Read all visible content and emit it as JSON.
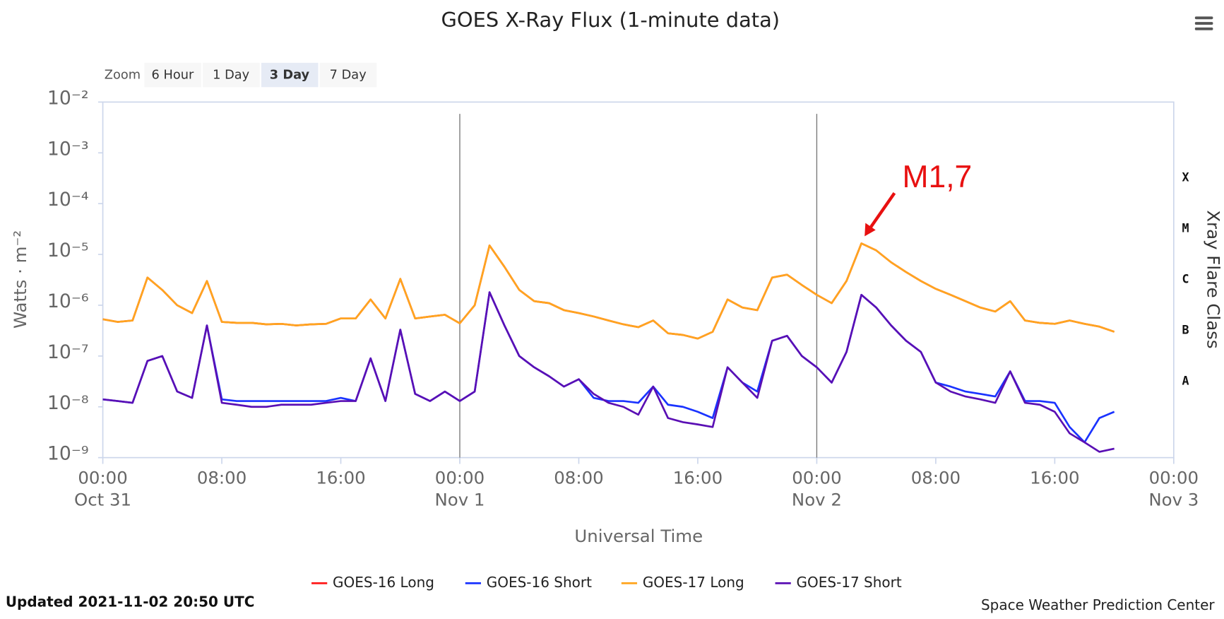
{
  "chart_data": {
    "type": "line",
    "title": "GOES X-Ray Flux (1-minute data)",
    "xlabel": "Universal Time",
    "ylabel": "Watts · m⁻²",
    "y2label": "Xray Flare Class",
    "yscale": "log",
    "xlim": [
      0,
      72
    ],
    "ylim": [
      1e-09,
      0.01
    ],
    "yticks": [
      {
        "value": 0.01,
        "label": "10⁻²"
      },
      {
        "value": 0.001,
        "label": "10⁻³"
      },
      {
        "value": 0.0001,
        "label": "10⁻⁴"
      },
      {
        "value": 1e-05,
        "label": "10⁻⁵"
      },
      {
        "value": 1e-06,
        "label": "10⁻⁶"
      },
      {
        "value": 1e-07,
        "label": "10⁻⁷"
      },
      {
        "value": 1e-08,
        "label": "10⁻⁸"
      },
      {
        "value": 1e-09,
        "label": "10⁻⁹"
      }
    ],
    "xticks": [
      {
        "value": 0,
        "label": "00:00"
      },
      {
        "value": 8,
        "label": "08:00"
      },
      {
        "value": 16,
        "label": "16:00"
      },
      {
        "value": 24,
        "label": "00:00"
      },
      {
        "value": 32,
        "label": "08:00"
      },
      {
        "value": 40,
        "label": "16:00"
      },
      {
        "value": 48,
        "label": "00:00"
      },
      {
        "value": 56,
        "label": "08:00"
      },
      {
        "value": 64,
        "label": "16:00"
      },
      {
        "value": 72,
        "label": "00:00"
      }
    ],
    "xtick_dates": [
      {
        "value": 0,
        "label": "Oct 31"
      },
      {
        "value": 24,
        "label": "Nov 1"
      },
      {
        "value": 48,
        "label": "Nov 2"
      },
      {
        "value": 72,
        "label": "Nov 3"
      }
    ],
    "y2_classes": [
      {
        "label": "A",
        "from": 1e-08,
        "to": 1e-07
      },
      {
        "label": "B",
        "from": 1e-07,
        "to": 1e-06
      },
      {
        "label": "C",
        "from": 1e-06,
        "to": 1e-05
      },
      {
        "label": "M",
        "from": 1e-05,
        "to": 0.0001
      },
      {
        "label": "X",
        "from": 0.0001,
        "to": 0.001
      }
    ],
    "annotation": "M1,7",
    "x": [
      0,
      1,
      2,
      3,
      4,
      5,
      6,
      7,
      8,
      9,
      10,
      11,
      12,
      13,
      14,
      15,
      16,
      17,
      18,
      19,
      20,
      21,
      22,
      23,
      24,
      25,
      26,
      27,
      28,
      29,
      30,
      31,
      32,
      33,
      34,
      35,
      36,
      37,
      38,
      39,
      40,
      41,
      42,
      43,
      44,
      45,
      46,
      47,
      48,
      49,
      50,
      51,
      52,
      53,
      54,
      55,
      56,
      57,
      58,
      59,
      60,
      61,
      62,
      63,
      64,
      65,
      66,
      67,
      68
    ],
    "series": [
      {
        "name": "GOES-16 Long",
        "color": "#ff1a1a",
        "values": [
          5.3e-07,
          4.7e-07,
          5e-07,
          3.5e-06,
          2e-06,
          1e-06,
          7e-07,
          3e-06,
          4.7e-07,
          4.5e-07,
          4.5e-07,
          4.2e-07,
          4.3e-07,
          4e-07,
          4.2e-07,
          4.3e-07,
          5.5e-07,
          5.5e-07,
          1.3e-06,
          5.5e-07,
          3.3e-06,
          5.5e-07,
          6e-07,
          6.5e-07,
          4.4e-07,
          1e-06,
          1.5e-05,
          5.7e-06,
          2e-06,
          1.2e-06,
          1.1e-06,
          8e-07,
          7e-07,
          6e-07,
          5e-07,
          4.2e-07,
          3.7e-07,
          5e-07,
          2.8e-07,
          2.6e-07,
          2.2e-07,
          3e-07,
          1.3e-06,
          9e-07,
          8e-07,
          3.5e-06,
          4e-06,
          2.5e-06,
          1.6e-06,
          1.1e-06,
          3e-06,
          1.65e-05,
          1.2e-05,
          7e-06,
          4.5e-06,
          3e-06,
          2.1e-06,
          1.6e-06,
          1.2e-06,
          9e-07,
          7.5e-07,
          1.2e-06,
          5e-07,
          4.5e-07,
          4.3e-07,
          5e-07,
          4.3e-07,
          3.8e-07,
          3e-07
        ]
      },
      {
        "name": "GOES-16 Short",
        "color": "#1a33ff",
        "values": [
          1.4e-08,
          1.3e-08,
          1.2e-08,
          8e-08,
          1e-07,
          2e-08,
          1.5e-08,
          4e-07,
          1.4e-08,
          1.3e-08,
          1.3e-08,
          1.3e-08,
          1.3e-08,
          1.3e-08,
          1.3e-08,
          1.3e-08,
          1.5e-08,
          1.3e-08,
          9e-08,
          1.3e-08,
          3.3e-07,
          1.8e-08,
          1.3e-08,
          2e-08,
          1.3e-08,
          2e-08,
          1.8e-06,
          4e-07,
          1e-07,
          6e-08,
          4e-08,
          2.5e-08,
          3.5e-08,
          1.5e-08,
          1.3e-08,
          1.3e-08,
          1.2e-08,
          2.5e-08,
          1.1e-08,
          1e-08,
          8e-09,
          6e-09,
          6e-08,
          3e-08,
          2e-08,
          2e-07,
          2.5e-07,
          1e-07,
          6e-08,
          3e-08,
          1.2e-07,
          1.6e-06,
          9e-07,
          4e-07,
          2e-07,
          1.2e-07,
          3e-08,
          2.5e-08,
          2e-08,
          1.8e-08,
          1.6e-08,
          5e-08,
          1.3e-08,
          1.3e-08,
          1.2e-08,
          4e-09,
          2e-09,
          6e-09,
          8e-09
        ]
      },
      {
        "name": "GOES-17 Long",
        "color": "#ffa51f",
        "values": [
          5.3e-07,
          4.7e-07,
          5e-07,
          3.5e-06,
          2e-06,
          1e-06,
          7e-07,
          3e-06,
          4.7e-07,
          4.5e-07,
          4.5e-07,
          4.2e-07,
          4.3e-07,
          4e-07,
          4.2e-07,
          4.3e-07,
          5.5e-07,
          5.5e-07,
          1.3e-06,
          5.5e-07,
          3.3e-06,
          5.5e-07,
          6e-07,
          6.5e-07,
          4.4e-07,
          1e-06,
          1.5e-05,
          5.7e-06,
          2e-06,
          1.2e-06,
          1.1e-06,
          8e-07,
          7e-07,
          6e-07,
          5e-07,
          4.2e-07,
          3.7e-07,
          5e-07,
          2.8e-07,
          2.6e-07,
          2.2e-07,
          3e-07,
          1.3e-06,
          9e-07,
          8e-07,
          3.5e-06,
          4e-06,
          2.5e-06,
          1.6e-06,
          1.1e-06,
          3e-06,
          1.65e-05,
          1.2e-05,
          7e-06,
          4.5e-06,
          3e-06,
          2.1e-06,
          1.6e-06,
          1.2e-06,
          9e-07,
          7.5e-07,
          1.2e-06,
          5e-07,
          4.5e-07,
          4.3e-07,
          5e-07,
          4.3e-07,
          3.8e-07,
          3e-07
        ]
      },
      {
        "name": "GOES-17 Short",
        "color": "#5a0fb4",
        "values": [
          1.4e-08,
          1.3e-08,
          1.2e-08,
          8e-08,
          1e-07,
          2e-08,
          1.5e-08,
          4e-07,
          1.2e-08,
          1.1e-08,
          1e-08,
          1e-08,
          1.1e-08,
          1.1e-08,
          1.1e-08,
          1.2e-08,
          1.3e-08,
          1.3e-08,
          9e-08,
          1.3e-08,
          3.3e-07,
          1.8e-08,
          1.3e-08,
          2e-08,
          1.3e-08,
          2e-08,
          1.8e-06,
          4e-07,
          1e-07,
          6e-08,
          4e-08,
          2.5e-08,
          3.5e-08,
          1.8e-08,
          1.2e-08,
          1e-08,
          7e-09,
          2.5e-08,
          6e-09,
          5e-09,
          4.5e-09,
          4e-09,
          6e-08,
          3e-08,
          1.5e-08,
          2e-07,
          2.5e-07,
          1e-07,
          6e-08,
          3e-08,
          1.2e-07,
          1.6e-06,
          9e-07,
          4e-07,
          2e-07,
          1.2e-07,
          3e-08,
          2e-08,
          1.6e-08,
          1.4e-08,
          1.2e-08,
          5e-08,
          1.2e-08,
          1.1e-08,
          8e-09,
          3e-09,
          2e-09,
          1.3e-09,
          1.5e-09
        ]
      }
    ]
  },
  "zoom": {
    "label": "Zoom",
    "buttons": [
      "6 Hour",
      "1 Day",
      "3 Day",
      "7 Day"
    ],
    "selected": 2
  },
  "footer": {
    "updated": "Updated 2021-11-02 20:50 UTC",
    "credit": "Space Weather Prediction Center"
  }
}
